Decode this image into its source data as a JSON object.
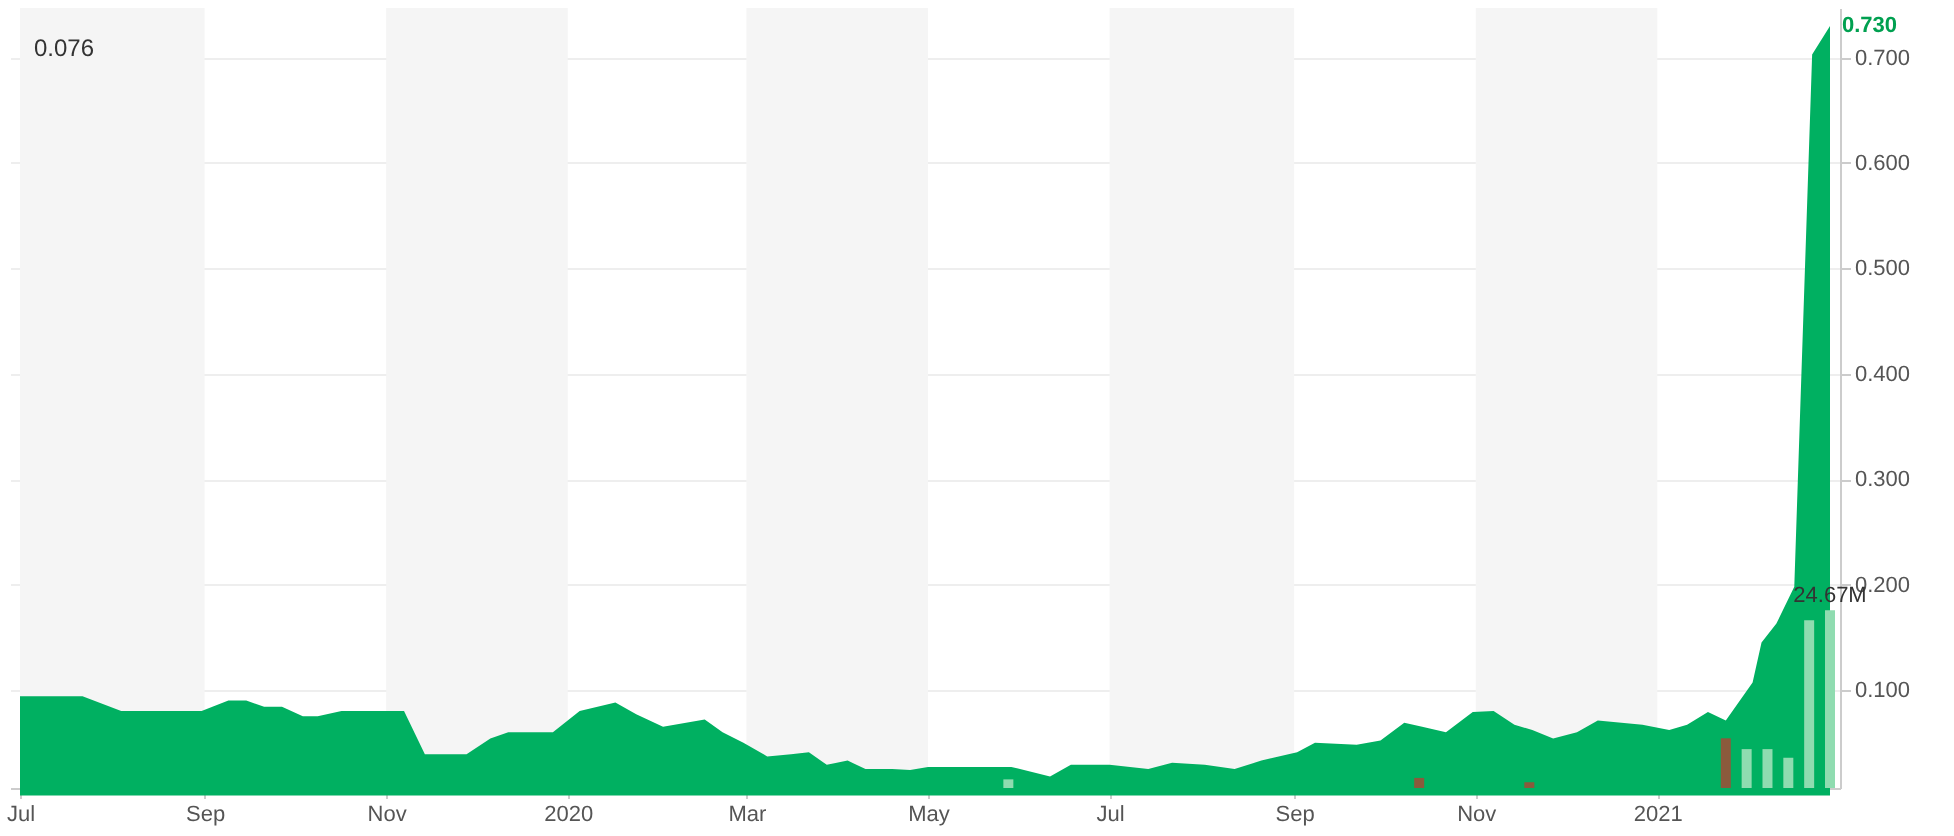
{
  "chart_data": {
    "type": "area",
    "xlim": [
      "2019-07-01",
      "2021-02-28"
    ],
    "xticks": [
      {
        "value": "2019-07-01",
        "label": "Jul"
      },
      {
        "value": "2019-09-01",
        "label": "Sep"
      },
      {
        "value": "2019-11-01",
        "label": "Nov"
      },
      {
        "value": "2020-01-01",
        "label": "2020"
      },
      {
        "value": "2020-03-01",
        "label": "Mar"
      },
      {
        "value": "2020-05-01",
        "label": "May"
      },
      {
        "value": "2020-07-01",
        "label": "Jul"
      },
      {
        "value": "2020-09-01",
        "label": "Sep"
      },
      {
        "value": "2020-11-01",
        "label": "Nov"
      },
      {
        "value": "2021-01-01",
        "label": "2021"
      }
    ],
    "ylim": [
      0.007,
      0.747
    ],
    "yticks": [
      {
        "value": 0.1,
        "label": "0.100"
      },
      {
        "value": 0.2,
        "label": "0.200"
      },
      {
        "value": 0.3,
        "label": "0.300"
      },
      {
        "value": 0.4,
        "label": "0.400"
      },
      {
        "value": 0.5,
        "label": "0.500"
      },
      {
        "value": 0.6,
        "label": "0.600"
      },
      {
        "value": 0.7,
        "label": "0.700"
      }
    ],
    "y2lim": [
      0,
      108.3
    ],
    "grid": "y",
    "legend": false,
    "bands": [
      {
        "axis": "x",
        "from": "2019-07-01",
        "to": "2019-09-01",
        "color": "#f5f5f5"
      },
      {
        "axis": "x",
        "from": "2019-11-01",
        "to": "2020-01-01",
        "color": "#f5f5f5"
      },
      {
        "axis": "x",
        "from": "2020-03-01",
        "to": "2020-05-01",
        "color": "#f5f5f5"
      },
      {
        "axis": "x",
        "from": "2020-07-01",
        "to": "2020-09-01",
        "color": "#f5f5f5"
      },
      {
        "axis": "x",
        "from": "2020-11-01",
        "to": "2021-01-01",
        "color": "#f5f5f5"
      }
    ],
    "annotations": [
      "0.076",
      {
        "text": "0.730",
        "x": "2021-02-28",
        "y": 0.73
      }
    ],
    "series": [
      {
        "color": "#00b061",
        "x": [
          "2019-07-01",
          "2019-07-22",
          "2019-08-04",
          "2019-08-31",
          "2019-09-09",
          "2019-09-15",
          "2019-09-21",
          "2019-09-27",
          "2019-10-04",
          "2019-10-09",
          "2019-10-17",
          "2019-11-07",
          "2019-11-14",
          "2019-11-28",
          "2019-12-06",
          "2019-12-12",
          "2019-12-27",
          "2020-01-05",
          "2020-01-17",
          "2020-01-24",
          "2020-02-02",
          "2020-02-16",
          "2020-02-22",
          "2020-02-29",
          "2020-03-08",
          "2020-03-16",
          "2020-03-22",
          "2020-03-28",
          "2020-04-04",
          "2020-04-10",
          "2020-04-19",
          "2020-04-25",
          "2020-05-01",
          "2020-05-29",
          "2020-06-11",
          "2020-06-18",
          "2020-07-01",
          "2020-07-14",
          "2020-07-22",
          "2020-08-02",
          "2020-08-12",
          "2020-08-21",
          "2020-09-02",
          "2020-09-08",
          "2020-09-22",
          "2020-09-30",
          "2020-10-08",
          "2020-10-14",
          "2020-10-22",
          "2020-10-31",
          "2020-11-07",
          "2020-11-14",
          "2020-11-20",
          "2020-11-27",
          "2020-12-05",
          "2020-12-12",
          "2020-12-27",
          "2021-01-05",
          "2021-01-11",
          "2021-01-18",
          "2021-01-24",
          "2021-02-02",
          "2021-02-05",
          "2021-02-10",
          "2021-02-16",
          "2021-02-22",
          "2021-02-28"
        ],
        "values": [
          0.094,
          0.094,
          0.08,
          0.08,
          0.09,
          0.09,
          0.084,
          0.084,
          0.075,
          0.075,
          0.08,
          0.08,
          0.039,
          0.039,
          0.054,
          0.06,
          0.06,
          0.08,
          0.088,
          0.077,
          0.065,
          0.072,
          0.06,
          0.05,
          0.037,
          0.039,
          0.041,
          0.029,
          0.033,
          0.025,
          0.025,
          0.024,
          0.027,
          0.027,
          0.018,
          0.029,
          0.029,
          0.025,
          0.031,
          0.029,
          0.025,
          0.033,
          0.041,
          0.05,
          0.048,
          0.052,
          0.069,
          0.065,
          0.06,
          0.079,
          0.08,
          0.067,
          0.062,
          0.054,
          0.06,
          0.071,
          0.067,
          0.062,
          0.067,
          0.079,
          0.071,
          0.107,
          0.145,
          0.163,
          0.198,
          0.703,
          0.73
        ]
      },
      {
        "type": "bar",
        "axis": "y2",
        "x": [
          "2020-05-28",
          "2020-10-13",
          "2020-11-19",
          "2021-01-24",
          "2021-01-31",
          "2021-02-07",
          "2021-02-14",
          "2021-02-21",
          "2021-02-28"
        ],
        "colors": [
          "#8fdcb0",
          "#8b5a3c",
          "#8b5a3c",
          "#8b5a3c",
          "#8fdcb0",
          "#8fdcb0",
          "#8fdcb0",
          "#8fdcb0",
          "#8fdcb0"
        ],
        "values": [
          1.2,
          1.4,
          0.8,
          6.9,
          5.4,
          5.4,
          4.2,
          23.3,
          24.67
        ],
        "value_labels": [
          null,
          null,
          null,
          null,
          null,
          null,
          null,
          null,
          "24.67M"
        ]
      }
    ]
  }
}
